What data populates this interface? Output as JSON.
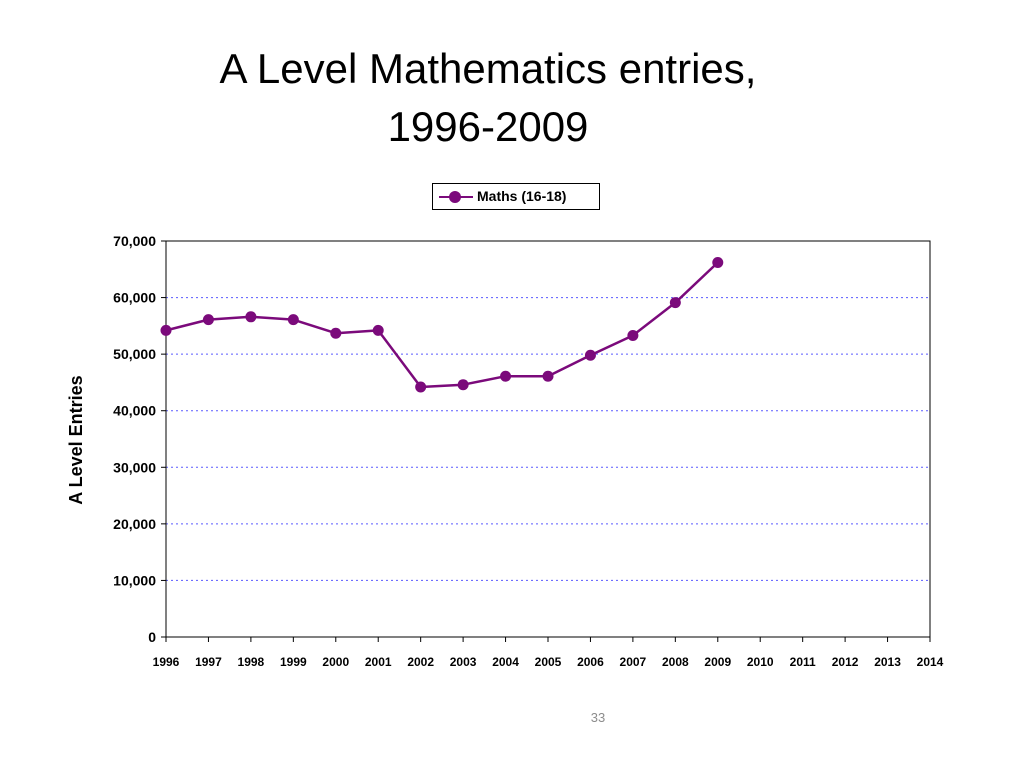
{
  "slide": {
    "title_line1": "A Level Mathematics entries,",
    "title_line2": "1996-2009",
    "page_number": "33"
  },
  "chart_data": {
    "type": "line",
    "title": "",
    "xlabel": "",
    "ylabel": "A Level Entries",
    "x": [
      1996,
      1997,
      1998,
      1999,
      2000,
      2001,
      2002,
      2003,
      2004,
      2005,
      2006,
      2007,
      2008,
      2009,
      2010,
      2011,
      2012,
      2013,
      2014
    ],
    "x_tick_labels": [
      "1996",
      "1997",
      "1998",
      "1999",
      "2000",
      "2001",
      "2002",
      "2003",
      "2004",
      "2005",
      "2006",
      "2007",
      "2008",
      "2009",
      "2010",
      "2011",
      "2012",
      "2013",
      "2014"
    ],
    "ylim": [
      0,
      70000
    ],
    "y_tick_labels": [
      "0",
      "10,000",
      "20,000",
      "30,000",
      "40,000",
      "50,000",
      "60,000",
      "70,000"
    ],
    "y_ticks": [
      0,
      10000,
      20000,
      30000,
      40000,
      50000,
      60000,
      70000
    ],
    "grid": "horizontal dotted",
    "legend_position": "top-center",
    "series": [
      {
        "name": "Maths (16-18)",
        "color": "#7b0a7b",
        "x": [
          1996,
          1997,
          1998,
          1999,
          2000,
          2001,
          2002,
          2003,
          2004,
          2005,
          2006,
          2007,
          2008,
          2009
        ],
        "values": [
          54200,
          56100,
          56600,
          56100,
          53700,
          54200,
          44200,
          44600,
          46100,
          46100,
          49800,
          53300,
          59100,
          66200
        ]
      }
    ],
    "colors": {
      "grid": "#5a5aff",
      "axis": "#000000"
    }
  }
}
